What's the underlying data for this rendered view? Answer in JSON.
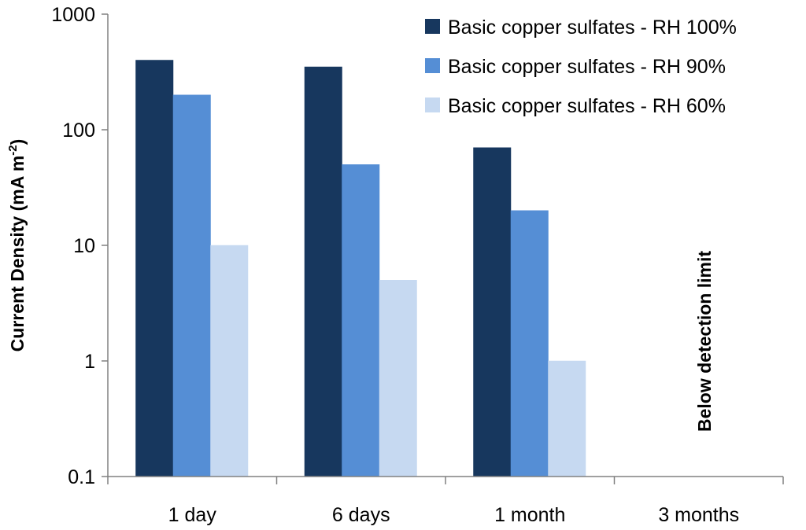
{
  "chart_data": {
    "type": "bar",
    "y_scale": "log",
    "ylim": [
      0.1,
      1000
    ],
    "ylabel": "Current Density (mA m",
    "ylabel_superscript": "-2",
    "ylabel_suffix": ")",
    "yticks": [
      "0.1",
      "1",
      "10",
      "100",
      "1000"
    ],
    "categories": [
      "1 day",
      "6 days",
      "1 month",
      "3 months"
    ],
    "series": [
      {
        "name": "Basic copper sulfates - RH 100%",
        "values": [
          400,
          350,
          70,
          null
        ],
        "color": "#17375e"
      },
      {
        "name": "Basic copper sulfates - RH 90%",
        "values": [
          200,
          50,
          20,
          null
        ],
        "color": "#558ed5"
      },
      {
        "name": "Basic copper sulfates - RH 60%",
        "values": [
          10,
          5,
          1,
          null
        ],
        "color": "#c6d9f1"
      }
    ],
    "annotation": "Below detection limit",
    "legend_position": "top-right",
    "grid": false
  }
}
